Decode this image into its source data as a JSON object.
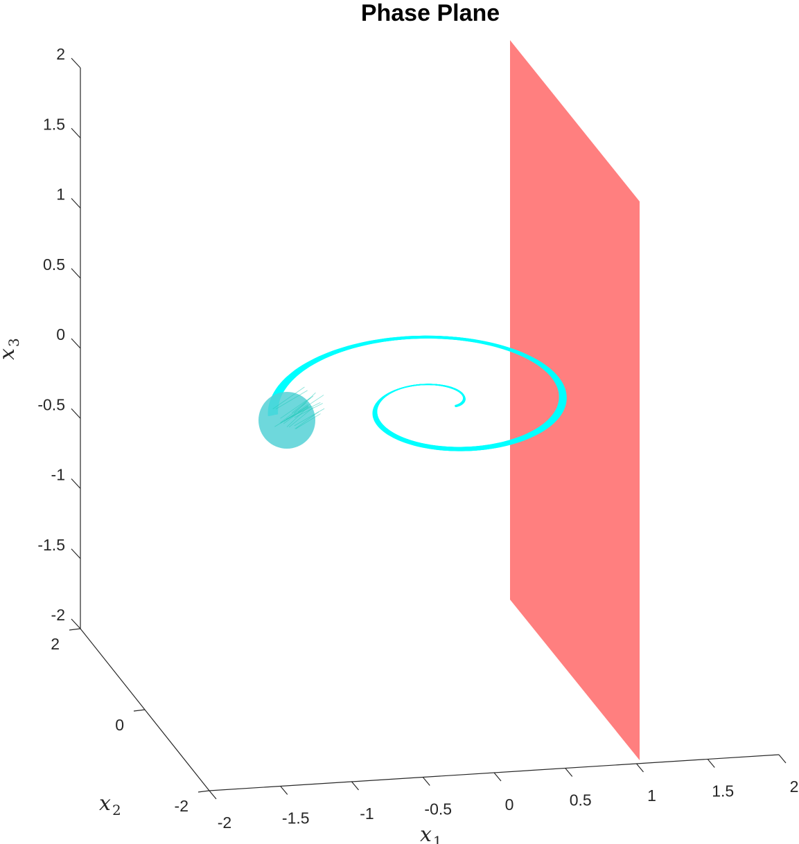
{
  "chart_data": {
    "type": "line",
    "title": "Phase Plane",
    "xlabel": {
      "base": "x",
      "sub": "1"
    },
    "ylabel": {
      "base": "x",
      "sub": "2"
    },
    "zlabel": {
      "base": "x",
      "sub": "3"
    },
    "xlim": [
      -2,
      2
    ],
    "ylim": [
      -2,
      2
    ],
    "zlim": [
      -2,
      2
    ],
    "x_ticks": [
      "-2",
      "-1.5",
      "-1",
      "-0.5",
      "0",
      "0.5",
      "1",
      "1.5",
      "2"
    ],
    "y_ticks": [
      "-2",
      "0",
      "2"
    ],
    "z_ticks": [
      "2",
      "1.5",
      "1",
      "0.5",
      "0",
      "-0.5",
      "-1",
      "-1.5",
      "-2"
    ],
    "plane": {
      "x1": 1,
      "color": "#ff7f7f"
    },
    "initial_set": {
      "color": "#55d1d6",
      "center": [
        -1.5,
        0,
        -0.6
      ]
    },
    "trajectory_color": "#00ffff",
    "grid": false
  }
}
